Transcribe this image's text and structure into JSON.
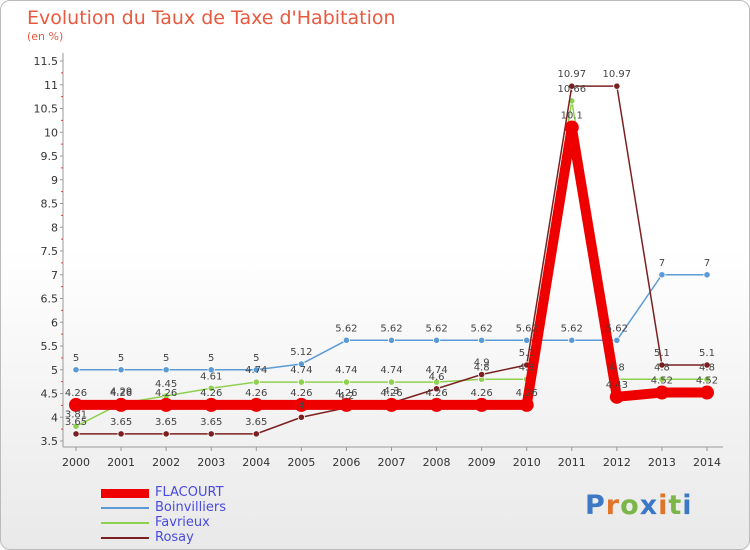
{
  "title": "Evolution du Taux de Taxe d'Habitation",
  "subtitle": "(en %)",
  "logo": {
    "text": "Proxiti",
    "colors": [
      "#3d78c6",
      "#e0742a",
      "#7ab648",
      "#3d78c6",
      "#e0742a",
      "#7ab648",
      "#3d78c6"
    ]
  },
  "chart_data": {
    "type": "line",
    "x": [
      "2000",
      "2001",
      "2002",
      "2003",
      "2004",
      "2005",
      "2006",
      "2007",
      "2008",
      "2009",
      "2010",
      "2011",
      "2012",
      "2013",
      "2014"
    ],
    "ylim": [
      3.5,
      11.5
    ],
    "yticks": [
      "3.5",
      "4",
      "4.5",
      "5",
      "5.5",
      "6",
      "6.5",
      "7",
      "7.5",
      "8",
      "8.5",
      "9",
      "9.5",
      "10",
      "10.5",
      "11",
      "11.5"
    ],
    "grid": false,
    "legend_position": "bottom-left",
    "series": [
      {
        "name": "FLACOURT",
        "color": "#ee0000",
        "width": 10,
        "values": [
          4.26,
          4.26,
          4.26,
          4.26,
          4.26,
          4.26,
          4.26,
          4.26,
          4.26,
          4.26,
          4.26,
          10.1,
          4.43,
          4.52,
          4.52
        ],
        "labels": [
          "4.26",
          "4.26",
          "4.26",
          "4.26",
          "4.26",
          "4.26",
          "4.26",
          "4.26",
          "4.26",
          "4.26",
          "4.26",
          "10.1",
          "4.43",
          "4.52",
          "4.52"
        ]
      },
      {
        "name": "Boinvilliers",
        "color": "#5b9bd5",
        "width": 1.5,
        "values": [
          5,
          5,
          5,
          5,
          5,
          5.12,
          5.62,
          5.62,
          5.62,
          5.62,
          5.62,
          5.62,
          5.62,
          7,
          7
        ],
        "labels": [
          "5",
          "5",
          "5",
          "5",
          "5",
          "5.12",
          "5.62",
          "5.62",
          "5.62",
          "5.62",
          "5.62",
          "5.62",
          "5.62",
          "7",
          "7"
        ]
      },
      {
        "name": "Favrieux",
        "color": "#8fd14f",
        "width": 1.5,
        "values": [
          3.81,
          4.29,
          4.45,
          4.61,
          4.74,
          4.74,
          4.74,
          4.74,
          4.74,
          4.8,
          4.8,
          10.66,
          4.8,
          4.8,
          4.8
        ],
        "labels": [
          "3.81",
          "4.29",
          "4.45",
          "4.61",
          "4.74",
          "4.74",
          "4.74",
          "4.74",
          "4.74",
          "4.8",
          "4.8",
          "10.66",
          "4.8",
          "4.8",
          "4.8"
        ]
      },
      {
        "name": "Rosay",
        "color": "#7b2020",
        "width": 1.5,
        "values": [
          3.65,
          3.65,
          3.65,
          3.65,
          3.65,
          4,
          4.2,
          4.3,
          4.6,
          4.9,
          5.1,
          10.97,
          10.97,
          5.1,
          5.1
        ],
        "labels": [
          "3.65",
          "3.65",
          "3.65",
          "3.65",
          "3.65",
          "4",
          "4.2",
          "4.3",
          "4.6",
          "4.9",
          "5.1",
          "10.97",
          "10.97",
          "5.1",
          "5.1"
        ]
      }
    ]
  }
}
